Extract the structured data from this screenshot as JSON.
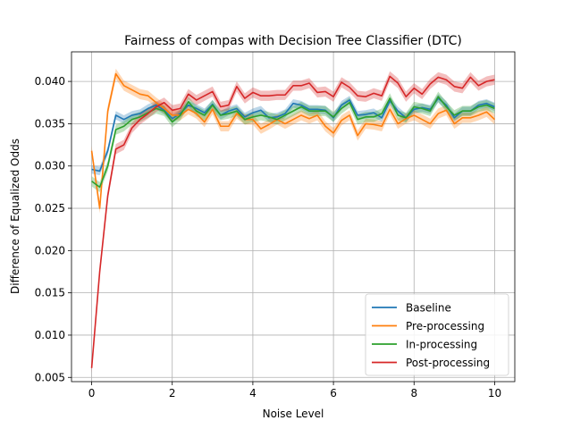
{
  "chart_data": {
    "type": "line",
    "title": "Fairness of compas with Decision Tree Classifier (DTC)",
    "xlabel": "Noise Level",
    "ylabel": "Difference of Equalized Odds",
    "xlim": [
      -0.5,
      10.5
    ],
    "ylim": [
      0.0045,
      0.0435
    ],
    "xticks": [
      0,
      2,
      4,
      6,
      8,
      10
    ],
    "xtick_labels": [
      "0",
      "2",
      "4",
      "6",
      "8",
      "10"
    ],
    "yticks": [
      0.005,
      0.01,
      0.015,
      0.02,
      0.025,
      0.03,
      0.035,
      0.04
    ],
    "ytick_labels": [
      "0.005",
      "0.010",
      "0.015",
      "0.020",
      "0.025",
      "0.030",
      "0.035",
      "0.040"
    ],
    "grid": true,
    "legend_position": "bottom-right",
    "x": [
      0,
      0.2,
      0.4,
      0.6,
      0.8,
      1.0,
      1.2,
      1.4,
      1.6,
      1.8,
      2.0,
      2.2,
      2.4,
      2.6,
      2.8,
      3.0,
      3.2,
      3.4,
      3.6,
      3.8,
      4.0,
      4.2,
      4.4,
      4.6,
      4.8,
      5.0,
      5.2,
      5.4,
      5.6,
      5.8,
      6.0,
      6.2,
      6.4,
      6.6,
      6.8,
      7.0,
      7.2,
      7.4,
      7.6,
      7.8,
      8.0,
      8.2,
      8.4,
      8.6,
      8.8,
      9.0,
      9.2,
      9.4,
      9.6,
      9.8,
      10.0
    ],
    "series": [
      {
        "name": "Baseline",
        "color": "#1f77b4",
        "band": 0.0005,
        "values": [
          0.0296,
          0.0294,
          0.0318,
          0.036,
          0.0355,
          0.036,
          0.0362,
          0.0368,
          0.0372,
          0.0366,
          0.0356,
          0.0362,
          0.0372,
          0.0368,
          0.0363,
          0.0373,
          0.036,
          0.0365,
          0.0368,
          0.0358,
          0.0363,
          0.0366,
          0.0357,
          0.0358,
          0.0362,
          0.0374,
          0.0372,
          0.0367,
          0.0367,
          0.0366,
          0.0357,
          0.0372,
          0.0378,
          0.036,
          0.0361,
          0.0363,
          0.0357,
          0.0377,
          0.0365,
          0.0357,
          0.0367,
          0.0369,
          0.0367,
          0.038,
          0.0372,
          0.0357,
          0.0365,
          0.0365,
          0.0372,
          0.0374,
          0.037
        ]
      },
      {
        "name": "Pre-processing",
        "color": "#ff7f0e",
        "band": 0.0006,
        "values": [
          0.0318,
          0.025,
          0.0365,
          0.0409,
          0.0395,
          0.039,
          0.0385,
          0.0383,
          0.0375,
          0.0368,
          0.036,
          0.036,
          0.0367,
          0.0362,
          0.0352,
          0.0367,
          0.0347,
          0.0347,
          0.0362,
          0.0355,
          0.0355,
          0.0344,
          0.0349,
          0.0355,
          0.035,
          0.0355,
          0.036,
          0.0356,
          0.036,
          0.0347,
          0.0339,
          0.0354,
          0.036,
          0.0336,
          0.035,
          0.0349,
          0.0347,
          0.0367,
          0.035,
          0.0356,
          0.036,
          0.0355,
          0.035,
          0.0362,
          0.0366,
          0.035,
          0.0357,
          0.0357,
          0.036,
          0.0364,
          0.0355
        ]
      },
      {
        "name": "In-processing",
        "color": "#2ca02c",
        "band": 0.0006,
        "values": [
          0.0282,
          0.0275,
          0.03,
          0.0343,
          0.0347,
          0.0355,
          0.0358,
          0.0363,
          0.0368,
          0.0365,
          0.0352,
          0.036,
          0.0376,
          0.0365,
          0.036,
          0.0372,
          0.036,
          0.0362,
          0.0365,
          0.0355,
          0.0358,
          0.036,
          0.0358,
          0.0355,
          0.036,
          0.0365,
          0.037,
          0.0365,
          0.0365,
          0.0365,
          0.0358,
          0.0368,
          0.0375,
          0.0355,
          0.0358,
          0.0358,
          0.0362,
          0.038,
          0.036,
          0.0357,
          0.037,
          0.0368,
          0.0365,
          0.0382,
          0.037,
          0.036,
          0.0365,
          0.0365,
          0.037,
          0.0372,
          0.0368
        ]
      },
      {
        "name": "Post-processing",
        "color": "#d62728",
        "band": 0.0006,
        "values": [
          0.0061,
          0.0175,
          0.0265,
          0.032,
          0.0325,
          0.0345,
          0.0355,
          0.0362,
          0.037,
          0.0375,
          0.0366,
          0.0368,
          0.0385,
          0.0378,
          0.0383,
          0.0388,
          0.037,
          0.0372,
          0.0394,
          0.038,
          0.0387,
          0.0383,
          0.0383,
          0.0384,
          0.0384,
          0.0395,
          0.0395,
          0.0398,
          0.0387,
          0.0388,
          0.0382,
          0.0399,
          0.0393,
          0.0383,
          0.0382,
          0.0386,
          0.0383,
          0.0406,
          0.0398,
          0.0382,
          0.0392,
          0.0385,
          0.0397,
          0.0405,
          0.0402,
          0.0394,
          0.0392,
          0.0405,
          0.0395,
          0.04,
          0.0402
        ]
      }
    ]
  }
}
